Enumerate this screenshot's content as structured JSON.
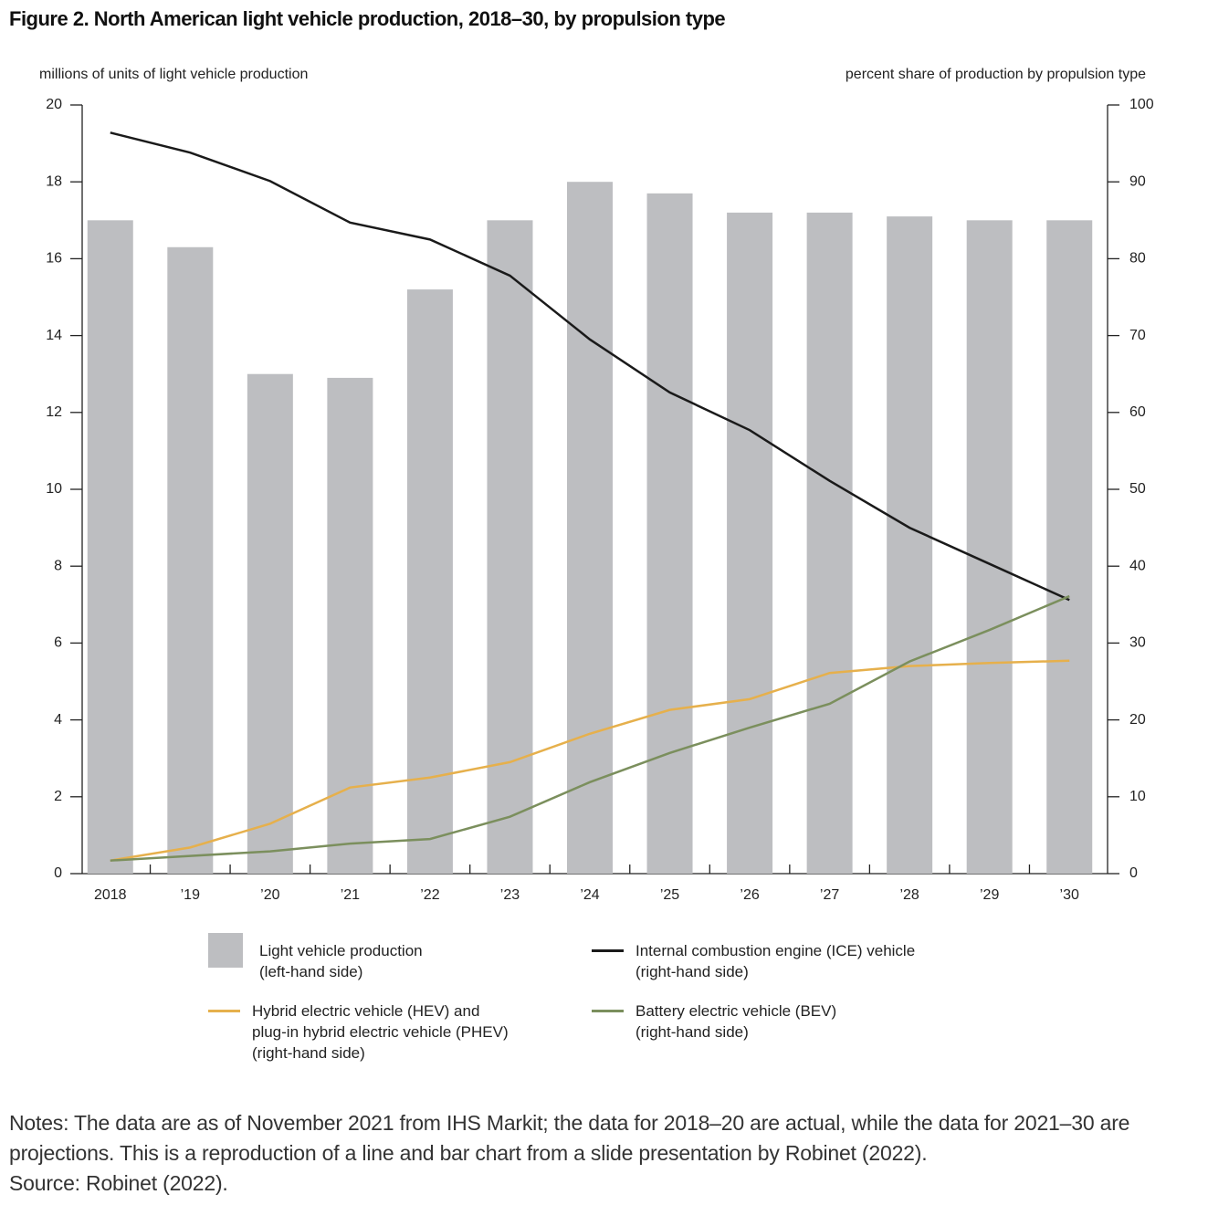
{
  "title": "Figure 2. North American light vehicle production, 2018–30, by propulsion type",
  "chart_data": {
    "type": "bar",
    "y_label": "millions of units of light vehicle production",
    "y2_label": "percent share of production by propulsion type",
    "categories": [
      "2018",
      "’19",
      "’20",
      "’21",
      "’22",
      "’23",
      "’24",
      "’25",
      "’26",
      "’27",
      "’28",
      "’29",
      "’30"
    ],
    "ylim": [
      0,
      20
    ],
    "yticks": [
      0,
      2,
      4,
      6,
      8,
      10,
      12,
      14,
      16,
      18,
      20
    ],
    "y2lim": [
      0,
      100
    ],
    "y2ticks": [
      0,
      10,
      20,
      30,
      40,
      50,
      60,
      70,
      80,
      90,
      100
    ],
    "series": [
      {
        "name": "Light vehicle production\n(left-hand side)",
        "type": "bar",
        "color": "#bdbec1",
        "values": [
          17.0,
          16.3,
          13.0,
          12.9,
          15.2,
          17.0,
          18.0,
          17.7,
          17.2,
          17.2,
          17.1,
          17.0,
          17.0
        ]
      },
      {
        "name": "Internal combustion engine (ICE) vehicle\n(right-hand side)",
        "type": "line",
        "axis": "y2",
        "color": "#1a1a1a",
        "values": [
          96.4,
          93.8,
          90.1,
          84.7,
          82.5,
          77.8,
          69.5,
          62.6,
          57.7,
          51.1,
          45.0,
          40.3,
          35.6
        ]
      },
      {
        "name": "Hybrid electric vehicle (HEV) and\nplug-in hybrid electric vehicle (PHEV)\n(right-hand side)",
        "type": "line",
        "axis": "y2",
        "color": "#e6b04c",
        "values": [
          1.7,
          3.4,
          6.5,
          11.2,
          12.5,
          14.5,
          18.2,
          21.3,
          22.7,
          26.1,
          27.0,
          27.4,
          27.7
        ]
      },
      {
        "name": "Battery electric vehicle (BEV)\n(right-hand side)",
        "type": "line",
        "axis": "y2",
        "color": "#7b8f5d",
        "values": [
          1.7,
          2.3,
          2.9,
          3.9,
          4.5,
          7.4,
          11.9,
          15.7,
          19.0,
          22.1,
          27.6,
          31.7,
          36.1
        ]
      }
    ]
  },
  "notes": "Notes: The data are as of November 2021 from IHS Markit; the data for 2018–20 are actual, while the data for 2021–30 are projections. This is a reproduction of a line and bar chart from a slide presentation by Robinet (2022).",
  "source": "Source: Robinet (2022)."
}
